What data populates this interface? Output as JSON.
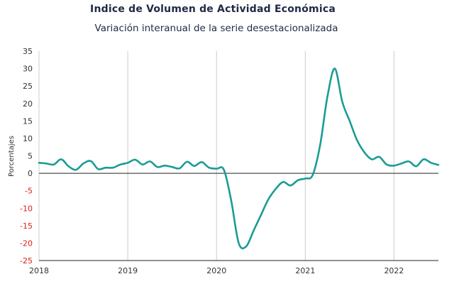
{
  "chart_data": {
    "type": "line",
    "title": "Indice de Volumen de  Actividad Económica",
    "subtitle": "Variación interanual de la serie desestacionalizada",
    "ylabel": "Porcentajes",
    "xlabel": "",
    "ylim": [
      -25,
      35
    ],
    "yticks": [
      35,
      30,
      25,
      20,
      15,
      10,
      5,
      0,
      -5,
      -10,
      -15,
      -20,
      -25
    ],
    "xticks": [
      "2018",
      "2019",
      "2020",
      "2021",
      "2022"
    ],
    "xlim": [
      "2018-01",
      "2022-07"
    ],
    "grid": "vertical at year boundaries",
    "series": [
      {
        "color": "#1a9c96",
        "x": [
          "2018-01",
          "2018-02",
          "2018-03",
          "2018-04",
          "2018-05",
          "2018-06",
          "2018-07",
          "2018-08",
          "2018-09",
          "2018-10",
          "2018-11",
          "2018-12",
          "2019-01",
          "2019-02",
          "2019-03",
          "2019-04",
          "2019-05",
          "2019-06",
          "2019-07",
          "2019-08",
          "2019-09",
          "2019-10",
          "2019-11",
          "2019-12",
          "2020-01",
          "2020-02",
          "2020-03",
          "2020-04",
          "2020-05",
          "2020-06",
          "2020-07",
          "2020-08",
          "2020-09",
          "2020-10",
          "2020-11",
          "2020-12",
          "2021-01",
          "2021-02",
          "2021-03",
          "2021-04",
          "2021-05",
          "2021-06",
          "2021-07",
          "2021-08",
          "2021-09",
          "2021-10",
          "2021-11",
          "2021-12",
          "2022-01",
          "2022-02",
          "2022-03",
          "2022-04",
          "2022-05",
          "2022-06",
          "2022-07"
        ],
        "values": [
          3.0,
          2.8,
          2.5,
          4.0,
          2.0,
          1.0,
          2.8,
          3.5,
          1.2,
          1.6,
          1.6,
          2.5,
          3.0,
          3.9,
          2.5,
          3.4,
          1.8,
          2.2,
          1.8,
          1.4,
          3.3,
          2.1,
          3.2,
          1.6,
          1.3,
          1.0,
          -8.0,
          -20.0,
          -21.0,
          -16.5,
          -12.0,
          -7.5,
          -4.5,
          -2.5,
          -3.5,
          -2.0,
          -1.5,
          -0.5,
          8.0,
          22.0,
          30.0,
          20.5,
          15.0,
          9.5,
          6.0,
          4.0,
          4.7,
          2.5,
          2.2,
          2.8,
          3.4,
          2.0,
          4.0,
          3.0,
          2.4
        ]
      }
    ],
    "colors": {
      "line": "#1a9c96",
      "negative_tick": "#e0201b",
      "positive_tick": "#333333",
      "grid": "#cccccc"
    }
  }
}
